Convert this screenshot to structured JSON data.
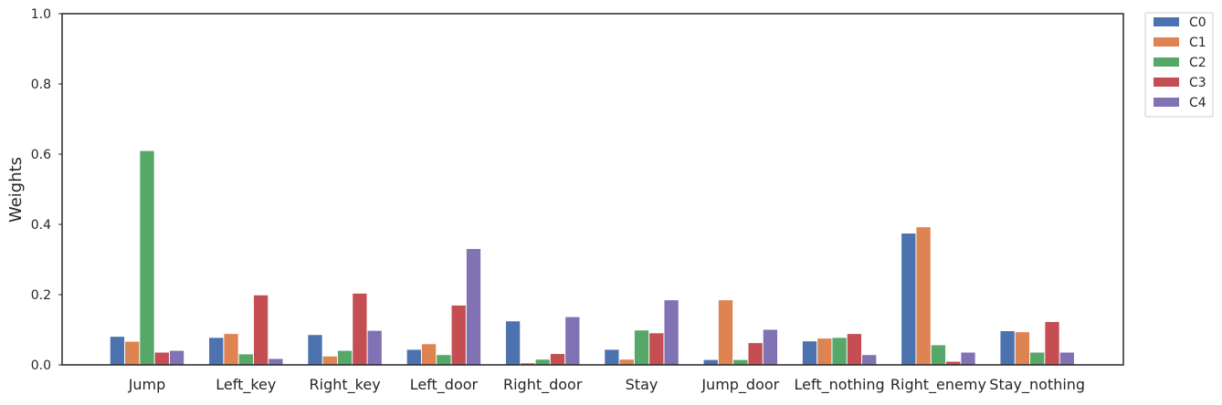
{
  "chart_data": {
    "type": "bar",
    "title": "",
    "xlabel": "",
    "ylabel": "Weights",
    "ylim": [
      0,
      1.0
    ],
    "yticks": [
      "0.0",
      "0.2",
      "0.4",
      "0.6",
      "0.8",
      "1.0"
    ],
    "grid": false,
    "legend_position": "outside-top-right",
    "categories": [
      "Jump",
      "Left_key",
      "Right_key",
      "Left_door",
      "Right_door",
      "Stay",
      "Jump_door",
      "Left_nothing",
      "Right_enemy",
      "Stay_nothing"
    ],
    "series": [
      {
        "name": "C0",
        "color": "#4c72b0",
        "values": [
          0.08,
          0.077,
          0.085,
          0.043,
          0.124,
          0.043,
          0.014,
          0.067,
          0.374,
          0.096
        ]
      },
      {
        "name": "C1",
        "color": "#dd8452",
        "values": [
          0.066,
          0.088,
          0.024,
          0.059,
          0.005,
          0.015,
          0.184,
          0.075,
          0.392,
          0.093
        ]
      },
      {
        "name": "C2",
        "color": "#55a868",
        "values": [
          0.609,
          0.03,
          0.04,
          0.028,
          0.015,
          0.098,
          0.014,
          0.077,
          0.056,
          0.035
        ]
      },
      {
        "name": "C3",
        "color": "#c44e52",
        "values": [
          0.035,
          0.198,
          0.203,
          0.169,
          0.031,
          0.09,
          0.062,
          0.088,
          0.009,
          0.122
        ]
      },
      {
        "name": "C4",
        "color": "#8172b3",
        "values": [
          0.04,
          0.017,
          0.097,
          0.33,
          0.136,
          0.184,
          0.1,
          0.028,
          0.035,
          0.035
        ]
      }
    ]
  }
}
